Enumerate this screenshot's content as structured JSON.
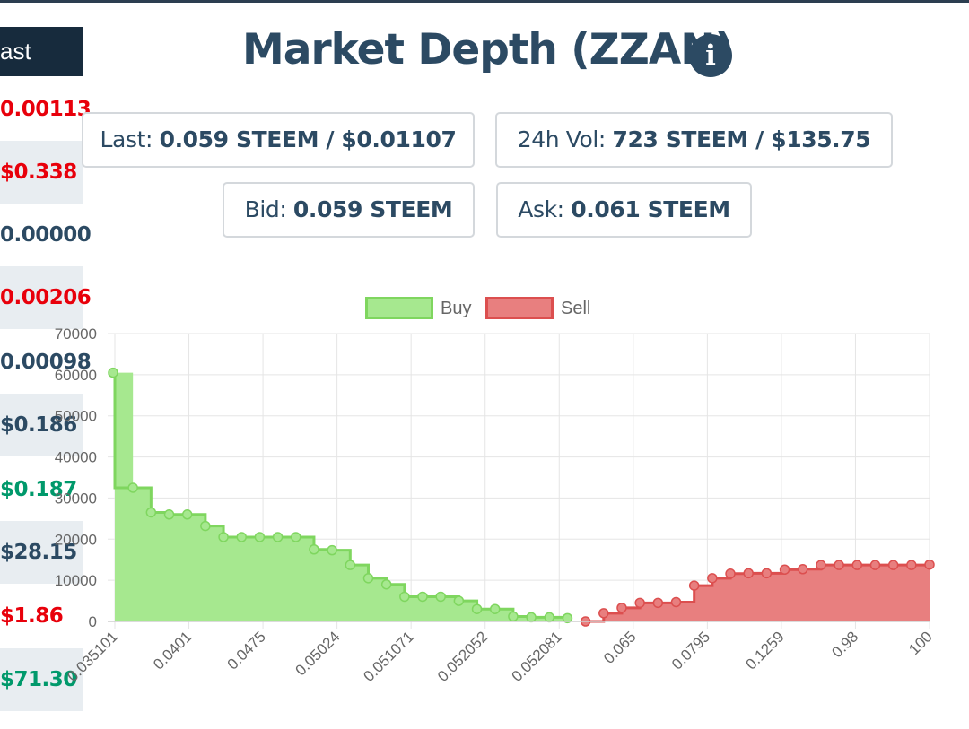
{
  "sidebar": {
    "header": "ast",
    "rows": [
      {
        "text": "0.00113",
        "color": "#e8000b"
      },
      {
        "text": "$0.338",
        "color": "#e8000b"
      },
      {
        "text": "0.00000",
        "color": "#2c4a63"
      },
      {
        "text": "0.00206",
        "color": "#e8000b"
      },
      {
        "text": "0.00098",
        "color": "#2c4a63"
      },
      {
        "text": "$0.186",
        "color": "#2c4a63"
      },
      {
        "text": "$0.187",
        "color": "#00996b"
      },
      {
        "text": "$28.15",
        "color": "#2c4a63"
      },
      {
        "text": "$1.86",
        "color": "#e8000b"
      },
      {
        "text": "$71.30",
        "color": "#00996b"
      }
    ]
  },
  "title": "Market Depth (ZZAN)",
  "info_icon": "info-circle-icon",
  "stats": {
    "last": {
      "label": "Last:",
      "value": "0.059 STEEM / $0.01107"
    },
    "vol": {
      "label": "24h Vol:",
      "value": "723 STEEM / $135.75"
    },
    "bid": {
      "label": "Bid:",
      "value": "0.059 STEEM"
    },
    "ask": {
      "label": "Ask:",
      "value": "0.061 STEEM"
    }
  },
  "colors": {
    "buy_fill": "#a6e88f",
    "buy_line": "#7fd65f",
    "sell_fill": "#e87f7f",
    "sell_line": "#dc4f4f",
    "grid": "#e5e5e5",
    "heading": "#2c4a63"
  },
  "chart_data": {
    "type": "area",
    "step": true,
    "legend": {
      "position": "top",
      "entries": [
        "Buy",
        "Sell"
      ]
    },
    "grid": true,
    "ylim": [
      0,
      70000
    ],
    "y_ticks": [
      "0",
      "10000",
      "20000",
      "30000",
      "40000",
      "50000",
      "60000",
      "70000"
    ],
    "x_tick_labels": [
      "0.035101",
      "0.0401",
      "0.0475",
      "0.05024",
      "0.051071",
      "0.052052",
      "0.052081",
      "0.065",
      "0.0795",
      "0.1259",
      "0.98",
      "100"
    ],
    "series": [
      {
        "name": "Buy",
        "values": [
          60500,
          32500,
          26500,
          26000,
          26000,
          23200,
          20500,
          20500,
          20500,
          20500,
          20500,
          17500,
          17300,
          13700,
          10500,
          9000,
          6000,
          6000,
          6000,
          5000,
          3000,
          3000,
          1200,
          1000,
          1000,
          800
        ]
      },
      {
        "name": "Sell",
        "values": [
          0,
          2000,
          3300,
          4500,
          4500,
          4700,
          8700,
          10500,
          11600,
          11700,
          11700,
          12600,
          12700,
          13700,
          13700,
          13700,
          13700,
          13700,
          13700,
          13800
        ]
      }
    ]
  }
}
